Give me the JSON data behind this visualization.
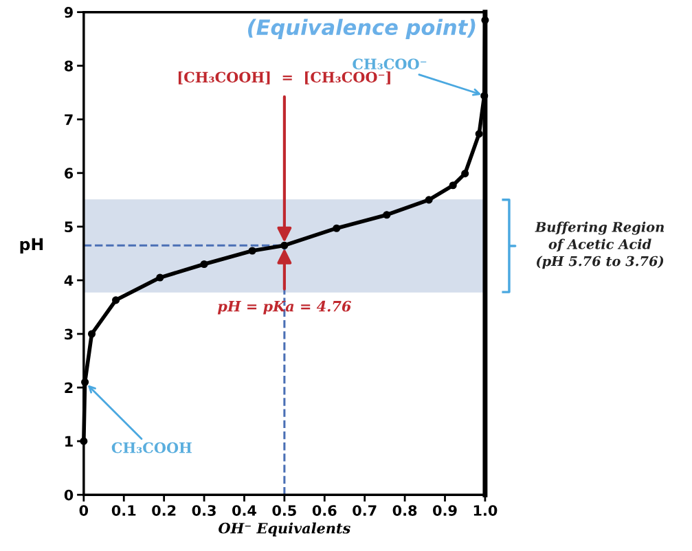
{
  "chart_data": {
    "type": "line",
    "xlabel": "OH⁻ Equivalents",
    "ylabel": "pH",
    "x": [
      0,
      0.003,
      0.02,
      0.08,
      0.19,
      0.3,
      0.42,
      0.5,
      0.63,
      0.755,
      0.86,
      0.92,
      0.95,
      0.985,
      0.998,
      1.0
    ],
    "series": [
      {
        "color": "#000000",
        "values": [
          1.0,
          2.1,
          3.0,
          3.63,
          4.05,
          4.3,
          4.55,
          4.65,
          4.97,
          5.22,
          5.5,
          5.77,
          5.99,
          6.73,
          7.44,
          8.85
        ]
      }
    ],
    "marker": "circle",
    "line_style": "solid",
    "grid": false,
    "legend": false,
    "xlim": [
      0,
      1.0
    ],
    "ylim": [
      0,
      9
    ],
    "xticks": [
      {
        "value": 0,
        "label": "0"
      },
      0.1,
      0.2,
      0.3,
      0.4,
      0.5,
      0.6,
      0.7,
      0.8,
      0.9,
      {
        "value": 1.0,
        "label": "1.0"
      }
    ],
    "yticks": [
      0,
      1,
      2,
      3,
      4,
      5,
      6,
      7,
      8,
      9
    ],
    "ref_lines": [
      {
        "axis": "x",
        "value": 0.5,
        "color": "#4a6fb5",
        "line_style": "dashed"
      },
      {
        "axis": "y",
        "value": 4.65,
        "color": "#4a6fb5",
        "line_style": "dashed"
      }
    ],
    "bands": [
      {
        "axis": "y",
        "from": 3.78,
        "to": 5.5,
        "color": "#d5deec"
      }
    ],
    "annotations": [
      "(Equivalence point)",
      {
        "text": "CH₃COO⁻",
        "x": 1.0,
        "y": 7.44
      },
      {
        "text": "[CH₃COOH]  =  [CH₃COO⁻]",
        "x": 0.5,
        "y": 4.65
      },
      {
        "text": "pH = pKa = 4.76",
        "x": 0.5,
        "y": 4.65
      },
      {
        "text": "CH₃COOH",
        "x": 0.003,
        "y": 2.1
      },
      "Buffering Region\nof Acetic Acid\n(pH 5.76 to 3.76)"
    ]
  }
}
